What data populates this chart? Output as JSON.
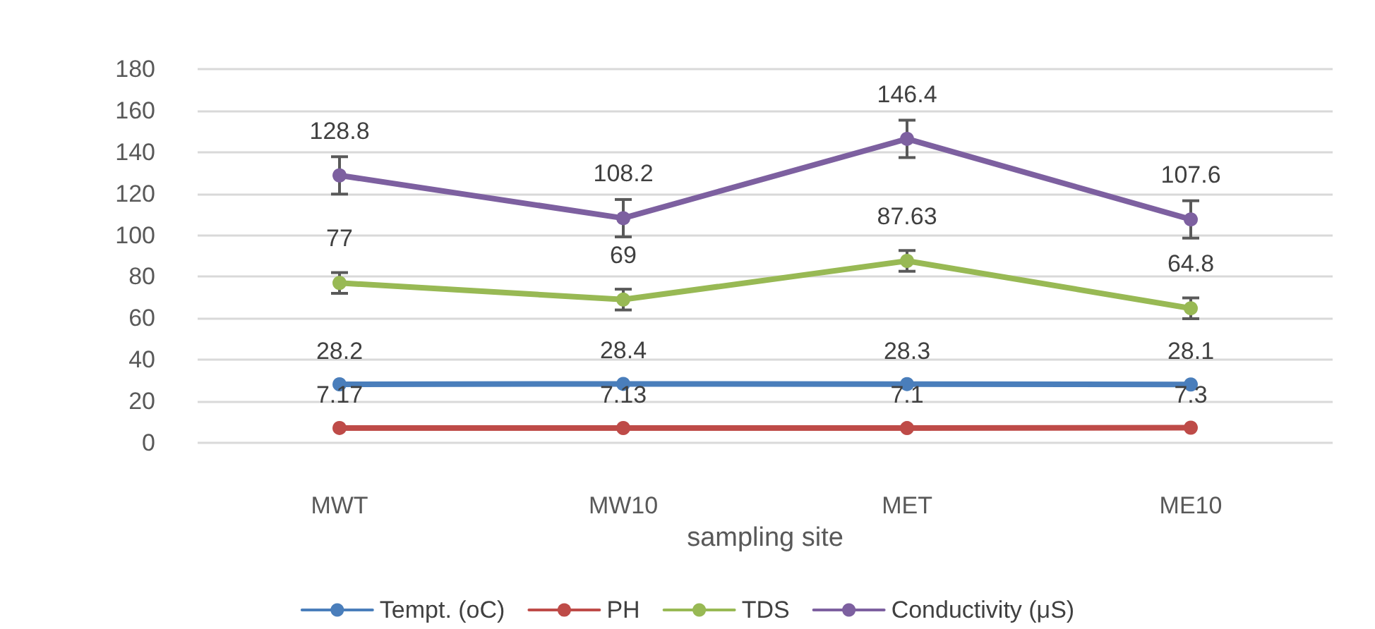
{
  "chart_data": {
    "type": "line",
    "xlabel": "sampling site",
    "categories": [
      "MWT",
      "MW10",
      "MET",
      "ME10"
    ],
    "series": [
      {
        "name": "Tempt. (oC)",
        "color": "#4a7ebb",
        "values": [
          28.2,
          28.4,
          28.3,
          28.1
        ]
      },
      {
        "name": "PH",
        "color": "#be4b48",
        "values": [
          7.17,
          7.13,
          7.1,
          7.3
        ]
      },
      {
        "name": "TDS",
        "color": "#98b954",
        "values": [
          77,
          69,
          87.63,
          64.8
        ],
        "errors": [
          5,
          5,
          5,
          5
        ]
      },
      {
        "name": "Conductivity (μS)",
        "color": "#7d60a0",
        "values": [
          128.8,
          108.2,
          146.4,
          107.6
        ],
        "errors": [
          9,
          9,
          9,
          9
        ]
      }
    ],
    "ylim": [
      0,
      180
    ],
    "yticks": [
      0,
      20,
      40,
      60,
      80,
      100,
      120,
      140,
      160,
      180
    ],
    "grid": "y",
    "legend": "bottom",
    "marker": "circle",
    "line_style": "solid",
    "data_labels": true
  }
}
